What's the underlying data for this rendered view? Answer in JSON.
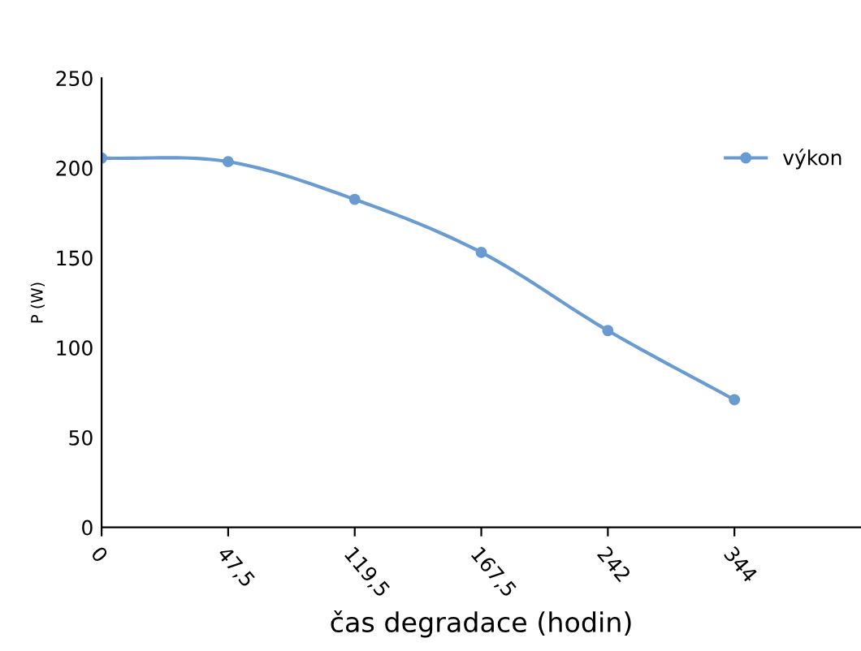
{
  "chart_data": {
    "type": "line",
    "xlabel": "čas degradace (hodin)",
    "ylabel": "P (W)",
    "categories": [
      "0",
      "47,5",
      "119,5",
      "167,5",
      "242",
      "344"
    ],
    "series": [
      {
        "name": "výkon",
        "color": "#6a9bd0",
        "values": [
          205.5,
          203.5,
          182.5,
          153,
          109.5,
          71
        ]
      }
    ],
    "ylim": [
      0,
      250
    ],
    "yticks": [
      0,
      50,
      100,
      150,
      200,
      250
    ],
    "grid": false,
    "legend": "right",
    "marker": "circle",
    "line_style": "solid"
  }
}
